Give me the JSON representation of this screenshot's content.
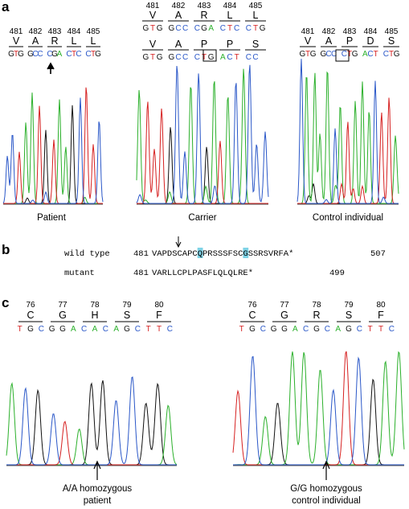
{
  "colors": {
    "A": "#2bb02b",
    "C": "#2a57c8",
    "G": "#111111",
    "T": "#d62020",
    "highlight": "#7fd3e6"
  },
  "panel_a": {
    "label": "a",
    "groups": [
      {
        "name": "patient",
        "caption": "Patient",
        "rows": [
          {
            "numbers": [
              "481",
              "482",
              "483",
              "484",
              "485"
            ],
            "aas": [
              "V",
              "A",
              "R",
              "L",
              "L"
            ],
            "nts": [
              [
                "G",
                "T",
                "G"
              ],
              [
                "G",
                "C",
                "C"
              ],
              [
                "C",
                "G",
                "A"
              ],
              [
                "C",
                "T",
                "C"
              ],
              [
                "C",
                "T",
                "G"
              ]
            ]
          }
        ]
      },
      {
        "name": "carrier",
        "caption": "Carrier",
        "rows": [
          {
            "numbers": [
              "481",
              "482",
              "483",
              "484",
              "485"
            ],
            "aas": [
              "V",
              "A",
              "R",
              "L",
              "L"
            ],
            "nts": [
              [
                "G",
                "T",
                "G"
              ],
              [
                "G",
                "C",
                "C"
              ],
              [
                "C",
                "G",
                "A"
              ],
              [
                "C",
                "T",
                "C"
              ],
              [
                "C",
                "T",
                "G"
              ]
            ]
          },
          {
            "numbers": [],
            "aas": [
              "V",
              "A",
              "P",
              "P",
              "S"
            ],
            "nts": [
              [
                "G",
                "T",
                "G"
              ],
              [
                "G",
                "C",
                "C"
              ],
              [
                "C",
                "T",
                "G"
              ],
              [
                "A",
                "C",
                "T"
              ],
              [
                "C",
                "C"
              ]
            ]
          }
        ]
      },
      {
        "name": "control",
        "caption": "Control individual",
        "rows": [
          {
            "numbers": [
              "481",
              "482",
              "483",
              "484",
              "485"
            ],
            "aas": [
              "V",
              "A",
              "P",
              "D",
              "S"
            ],
            "nts": [
              [
                "G",
                "T",
                "G"
              ],
              [
                "G",
                "C",
                "C"
              ],
              [
                "C",
                "T",
                "G"
              ],
              [
                "A",
                "C",
                "T"
              ],
              [
                "C",
                "T",
                "G"
              ]
            ]
          }
        ]
      }
    ]
  },
  "panel_b": {
    "label": "b",
    "wild_type": {
      "label": "wild type",
      "start": "481",
      "sequence": "VAPDSCAPCQPRSSSFSCGSSRSVRFA*",
      "end": "507",
      "highlight_positions": [
        9,
        18
      ]
    },
    "mutant": {
      "label": "mutant",
      "start": "481",
      "sequence": "VARLLCPLPASFLQLQLRE*",
      "end": "499"
    }
  },
  "panel_c": {
    "label": "c",
    "groups": [
      {
        "name": "patient",
        "numbers": [
          "76",
          "77",
          "78",
          "79",
          "80"
        ],
        "aas": [
          "C",
          "G",
          "H",
          "S",
          "F"
        ],
        "nts": [
          "T",
          "G",
          "C",
          "G",
          "G",
          "A",
          "C",
          "A",
          "C",
          "A",
          "G",
          "C",
          "T",
          "T",
          "C"
        ],
        "caption_line1": "A/A homozygous",
        "caption_line2": "patient"
      },
      {
        "name": "control",
        "numbers": [
          "76",
          "77",
          "78",
          "79",
          "80"
        ],
        "aas": [
          "C",
          "G",
          "R",
          "S",
          "F"
        ],
        "nts": [
          "T",
          "G",
          "C",
          "G",
          "G",
          "A",
          "C",
          "G",
          "C",
          "A",
          "G",
          "C",
          "T",
          "T",
          "C"
        ],
        "caption_line1": "G/G homozygous",
        "caption_line2": "control individual"
      }
    ]
  }
}
